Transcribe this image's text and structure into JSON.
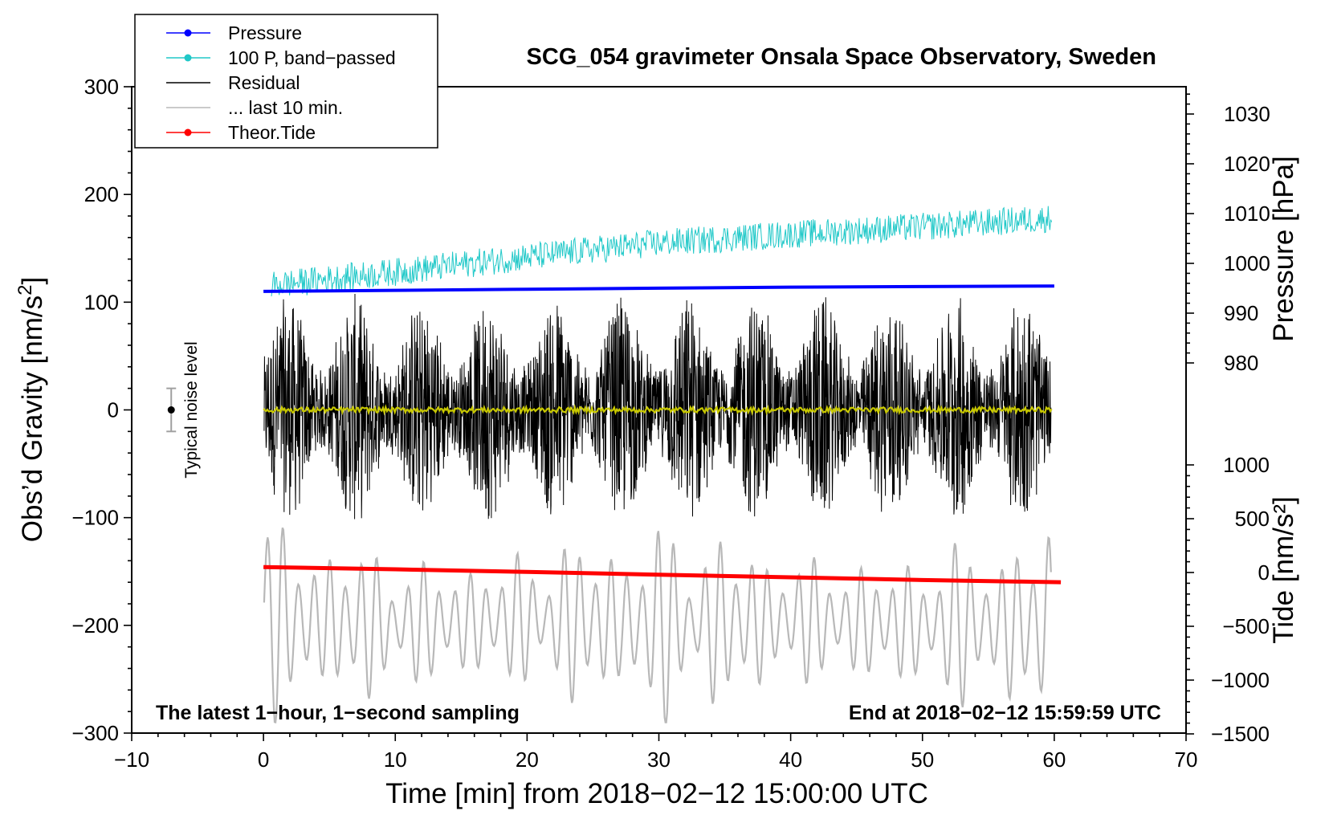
{
  "chart_data": {
    "type": "line",
    "title": "SCG_054 gravimeter Onsala Space Observatory, Sweden",
    "xlabel": "Time [min] from 2018−02−12 15:00:00 UTC",
    "ylabel": "Obs’d Gravity [nm/s²]",
    "xlim": [
      -10,
      70
    ],
    "ylim": [
      -300,
      300
    ],
    "x_ticks": [
      -10,
      0,
      10,
      20,
      30,
      40,
      50,
      60,
      70
    ],
    "x_tick_labels": [
      "−10",
      "0",
      "10",
      "20",
      "30",
      "40",
      "50",
      "60",
      "70"
    ],
    "y_ticks": [
      -300,
      -200,
      -100,
      0,
      100,
      200,
      300
    ],
    "y_tick_labels": [
      "−300",
      "−200",
      "−100",
      "0",
      "100",
      "200",
      "300"
    ],
    "pressure_axis": {
      "label": "Pressure [hPa]",
      "ticks": [
        980,
        990,
        1000,
        1010,
        1020,
        1030
      ],
      "tick_labels": [
        "980",
        "990",
        "1000",
        "1010",
        "1020",
        "1030"
      ]
    },
    "tide_axis": {
      "label": "Tide [nm/s²]",
      "ticks": [
        1000,
        500,
        0,
        -500,
        -1000,
        -1500
      ],
      "tick_labels": [
        "1000",
        "500",
        "0",
        "−500",
        "−1000",
        "−1500"
      ]
    },
    "legend": [
      {
        "label": "Pressure",
        "color": "#0000ff",
        "marker": true
      },
      {
        "label": "100 P, band−passed",
        "color": "#20c8c8",
        "marker": true
      },
      {
        "label": "Residual",
        "color": "#000000",
        "marker": false
      },
      {
        "label": "... last 10 min.",
        "color": "#b8b8b8",
        "marker": false
      },
      {
        "label": "Theor.Tide",
        "color": "#ff0000",
        "marker": true
      }
    ],
    "series": [
      {
        "name": "Pressure",
        "axis": "gravity-equivalent",
        "x": [
          0,
          10,
          20,
          30,
          40,
          50,
          60
        ],
        "y": [
          110,
          111,
          112,
          113,
          114,
          114.5,
          115
        ],
        "color": "#0000ff"
      },
      {
        "name": "100 P, band−passed",
        "axis": "gravity-equivalent",
        "x": [
          0,
          10,
          20,
          30,
          40,
          50,
          60
        ],
        "y": [
          115,
          128,
          142,
          155,
          163,
          170,
          178
        ],
        "amplitude": 13,
        "color": "#20c8c8"
      },
      {
        "name": "Residual",
        "axis": "gravity",
        "x": [
          0,
          10,
          20,
          30,
          40,
          50,
          60
        ],
        "y": [
          0,
          0,
          0,
          0,
          0,
          0,
          0
        ],
        "amplitude_max": 110,
        "color": "#000000"
      },
      {
        "name": "... last 10 min.",
        "axis": "gravity",
        "x": [
          0,
          10,
          20,
          30,
          40,
          50,
          60
        ],
        "y": [
          -195,
          -200,
          -195,
          -200,
          -195,
          -200,
          -200
        ],
        "amplitude_max": 100,
        "color": "#b8b8b8"
      },
      {
        "name": "Theor.Tide",
        "axis": "tide",
        "x": [
          0,
          10,
          20,
          30,
          40,
          50,
          60.5
        ],
        "y": [
          50,
          30,
          5,
          -20,
          -45,
          -70,
          -90
        ],
        "color": "#ff0000"
      },
      {
        "name": "Filtered residual",
        "axis": "gravity",
        "x": [
          0,
          60
        ],
        "y": [
          0,
          0
        ],
        "color": "#c8c800"
      }
    ],
    "noise_level": {
      "label": "Typical noise level",
      "x": -7,
      "y": 0,
      "error": 20
    },
    "notes": {
      "left": "The latest 1−hour, 1−second sampling",
      "right": "End at 2018−02−12 15:59:59 UTC"
    }
  }
}
